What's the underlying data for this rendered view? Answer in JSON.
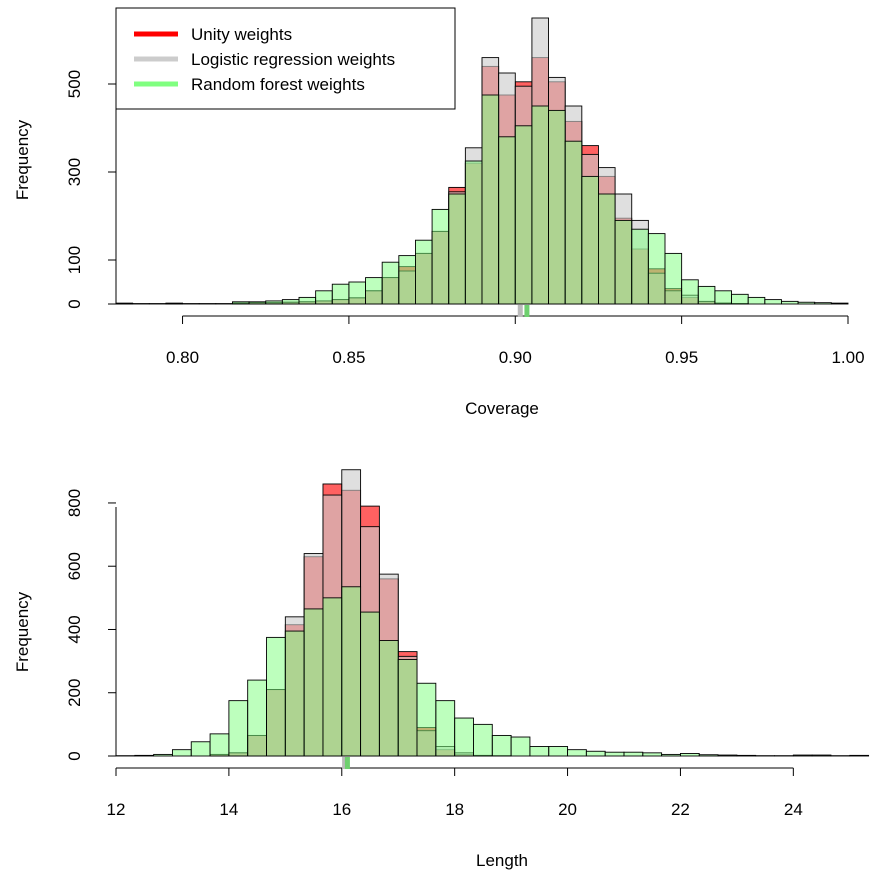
{
  "chart_data": [
    {
      "type": "bar",
      "subtype": "overlaid-histogram",
      "xlabel": "Coverage",
      "ylabel": "Frequency",
      "xlim": [
        0.78,
        1.0
      ],
      "ylim": [
        0,
        650
      ],
      "x_ticks": [
        "0.80",
        "0.85",
        "0.90",
        "0.95",
        "1.00"
      ],
      "y_ticks": [
        "0",
        "100",
        "300",
        "500"
      ],
      "bin_width": 0.005,
      "bin_starts": [
        0.78,
        0.785,
        0.79,
        0.795,
        0.8,
        0.805,
        0.81,
        0.815,
        0.82,
        0.825,
        0.83,
        0.835,
        0.84,
        0.845,
        0.85,
        0.855,
        0.86,
        0.865,
        0.87,
        0.875,
        0.88,
        0.885,
        0.89,
        0.895,
        0.9,
        0.905,
        0.91,
        0.915,
        0.92,
        0.925,
        0.93,
        0.935,
        0.94,
        0.945,
        0.95,
        0.955,
        0.96,
        0.965,
        0.97,
        0.975,
        0.98,
        0.985,
        0.99,
        0.995
      ],
      "series": [
        {
          "name": "Unity weights",
          "color": "#ff0000",
          "values": [
            1,
            0,
            0,
            1,
            0,
            0,
            0,
            2,
            3,
            3,
            4,
            5,
            7,
            10,
            14,
            30,
            60,
            85,
            115,
            165,
            265,
            320,
            540,
            475,
            505,
            560,
            505,
            415,
            360,
            290,
            195,
            125,
            80,
            35,
            15,
            5,
            2,
            1,
            0,
            0,
            0,
            0,
            0,
            0
          ]
        },
        {
          "name": "Logistic regression weights",
          "color": "#cccccc",
          "values": [
            1,
            0,
            0,
            1,
            0,
            0,
            0,
            2,
            3,
            3,
            4,
            5,
            7,
            10,
            14,
            30,
            60,
            75,
            115,
            165,
            255,
            355,
            560,
            525,
            495,
            650,
            515,
            450,
            340,
            310,
            250,
            190,
            70,
            30,
            20,
            6,
            2,
            1,
            0,
            0,
            0,
            0,
            0,
            0
          ]
        },
        {
          "name": "Random forest weights",
          "color": "#80ff80",
          "values": [
            2,
            1,
            1,
            2,
            1,
            1,
            1,
            5,
            5,
            7,
            10,
            15,
            30,
            45,
            50,
            60,
            95,
            110,
            145,
            215,
            250,
            325,
            475,
            380,
            405,
            450,
            440,
            370,
            290,
            250,
            190,
            170,
            160,
            115,
            55,
            40,
            30,
            22,
            15,
            10,
            6,
            4,
            3,
            2
          ]
        }
      ],
      "summary_marks": [
        0.9015,
        0.9035
      ],
      "legend": {
        "position": "top-left",
        "entries": [
          "Unity weights",
          "Logistic regression weights",
          "Random forest weights"
        ]
      },
      "grid": false
    },
    {
      "type": "bar",
      "subtype": "overlaid-histogram",
      "xlabel": "Length",
      "ylabel": "Frequency",
      "xlim": [
        12,
        25.5
      ],
      "ylim": [
        0,
        920
      ],
      "x_ticks": [
        "12",
        "14",
        "16",
        "18",
        "20",
        "22",
        "24"
      ],
      "y_ticks": [
        "0",
        "200",
        "400",
        "600",
        "800"
      ],
      "bin_width": 0.333333,
      "bin_starts": [
        12.0,
        12.333,
        12.667,
        13.0,
        13.333,
        13.667,
        14.0,
        14.333,
        14.667,
        15.0,
        15.333,
        15.667,
        16.0,
        16.333,
        16.667,
        17.0,
        17.333,
        17.667,
        18.0,
        18.333,
        18.667,
        19.0,
        19.333,
        19.667,
        20.0,
        20.333,
        20.667,
        21.0,
        21.333,
        21.667,
        22.0,
        22.333,
        22.667,
        23.0,
        23.333,
        23.667,
        24.0,
        24.333,
        24.667,
        25.0
      ],
      "series": [
        {
          "name": "Unity weights",
          "color": "#ff0000",
          "values": [
            0,
            0,
            0,
            0,
            0,
            5,
            10,
            65,
            210,
            415,
            630,
            860,
            840,
            790,
            560,
            330,
            90,
            20,
            5,
            1,
            0,
            0,
            0,
            0,
            0,
            0,
            0,
            0,
            0,
            0,
            0,
            0,
            0,
            0,
            0,
            0,
            0,
            0,
            0,
            0
          ]
        },
        {
          "name": "Logistic regression weights",
          "color": "#cccccc",
          "values": [
            0,
            0,
            0,
            0,
            0,
            5,
            10,
            65,
            210,
            440,
            640,
            825,
            905,
            725,
            575,
            315,
            80,
            30,
            10,
            2,
            1,
            0,
            0,
            0,
            0,
            0,
            0,
            0,
            0,
            0,
            0,
            0,
            0,
            0,
            0,
            0,
            0,
            0,
            0,
            0
          ]
        },
        {
          "name": "Random forest weights",
          "color": "#80ff80",
          "values": [
            1,
            2,
            5,
            20,
            45,
            70,
            175,
            240,
            375,
            395,
            465,
            500,
            535,
            455,
            365,
            305,
            230,
            175,
            120,
            100,
            65,
            60,
            30,
            30,
            20,
            15,
            12,
            12,
            10,
            5,
            8,
            4,
            3,
            2,
            1,
            1,
            3,
            3,
            1,
            2
          ]
        }
      ],
      "summary_marks": [
        16.05,
        16.1
      ],
      "legend": null,
      "grid": false
    }
  ]
}
